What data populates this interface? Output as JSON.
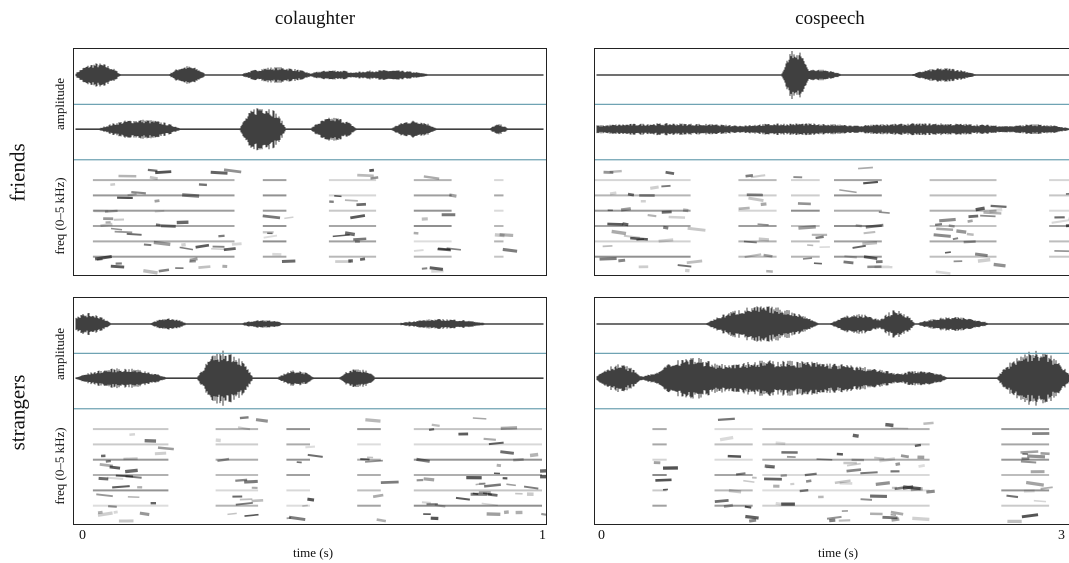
{
  "columns": {
    "left": "colaughter",
    "right": "cospeech"
  },
  "rows": {
    "top": "friends",
    "bottom": "strangers"
  },
  "axis_labels": {
    "amplitude": "amplitude",
    "frequency": "freq (0–5 kHz)",
    "time": "time (s)"
  },
  "ticks": {
    "left_start": "0",
    "left_end": "1",
    "right_start": "0",
    "right_end": "3"
  },
  "colors": {
    "divider": "#6fa3b3",
    "waveform": "#111111",
    "spectrogram": "#1a1a1a"
  }
}
